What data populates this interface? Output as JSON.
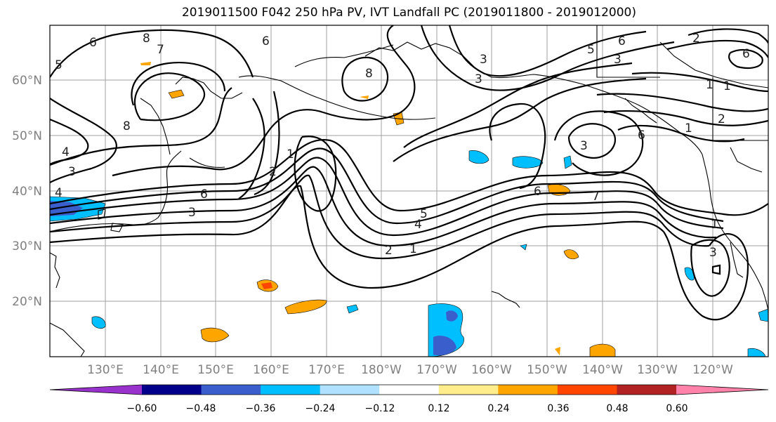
{
  "title": "2019011500 F042 250 hPa PV, IVT Landfall PC (2019011800 - 2019012000)",
  "lat_labels": [
    "60°N",
    "50°N",
    "40°N",
    "30°N",
    "20°N"
  ],
  "lon_labels": [
    "130°E",
    "140°E",
    "150°E",
    "160°E",
    "170°E",
    "180°W",
    "170°W",
    "160°W",
    "150°W",
    "140°W",
    "130°W",
    "120°W"
  ],
  "contour_labels": [
    "6",
    "8",
    "7",
    "6",
    "8",
    "5",
    "6",
    "6",
    "3",
    "5",
    "1",
    "2",
    "1",
    "8",
    "4",
    "3",
    "4",
    "2",
    "1",
    "3",
    "6",
    "3",
    "5",
    "4",
    "2",
    "1",
    "6",
    "7",
    "3",
    "6",
    "2",
    "1",
    "3",
    "3",
    "1"
  ],
  "colorbar": {
    "colors": [
      "#9932cc",
      "#00008b",
      "#3a5fcd",
      "#00bfff",
      "#b0e2ff",
      "#ffffff",
      "#ffec8b",
      "#ffa500",
      "#ff4500",
      "#b22222",
      "#ff82ab"
    ],
    "tick_labels": [
      "−0.60",
      "−0.48",
      "−0.36",
      "−0.24",
      "−0.12",
      "0.12",
      "0.24",
      "0.36",
      "0.48",
      "0.60"
    ]
  }
}
